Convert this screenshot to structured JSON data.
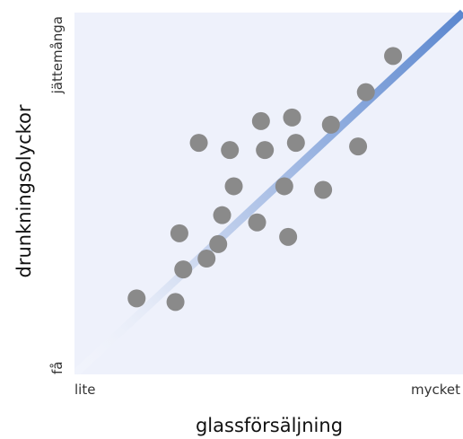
{
  "chart_data": {
    "type": "scatter",
    "xlabel": "glassförsäljning",
    "ylabel": "drunkningsolyckor",
    "x_tick_labels": {
      "low": "lite",
      "high": "mycket"
    },
    "y_tick_labels": {
      "low": "få",
      "high": "jättemånga"
    },
    "xlim": [
      0,
      100
    ],
    "ylim": [
      0,
      100
    ],
    "grid": false,
    "trend_line": {
      "from": [
        0,
        0
      ],
      "to": [
        100,
        100
      ]
    },
    "points": [
      {
        "x": 16,
        "y": 21
      },
      {
        "x": 26,
        "y": 20
      },
      {
        "x": 28,
        "y": 29
      },
      {
        "x": 27,
        "y": 39
      },
      {
        "x": 34,
        "y": 32
      },
      {
        "x": 37,
        "y": 36
      },
      {
        "x": 38,
        "y": 44
      },
      {
        "x": 41,
        "y": 52
      },
      {
        "x": 40,
        "y": 62
      },
      {
        "x": 32,
        "y": 64
      },
      {
        "x": 47,
        "y": 42
      },
      {
        "x": 49,
        "y": 62
      },
      {
        "x": 48,
        "y": 70
      },
      {
        "x": 54,
        "y": 52
      },
      {
        "x": 55,
        "y": 38
      },
      {
        "x": 57,
        "y": 64
      },
      {
        "x": 56,
        "y": 71
      },
      {
        "x": 64,
        "y": 51
      },
      {
        "x": 66,
        "y": 69
      },
      {
        "x": 73,
        "y": 63
      },
      {
        "x": 75,
        "y": 78
      },
      {
        "x": 82,
        "y": 88
      }
    ]
  },
  "colors": {
    "background": "#ffffff",
    "plot_area": "#eef1fb",
    "points": "#8a8a8a",
    "trend_line": "#5b87cf",
    "trend_line_faded": "#ffffff"
  }
}
